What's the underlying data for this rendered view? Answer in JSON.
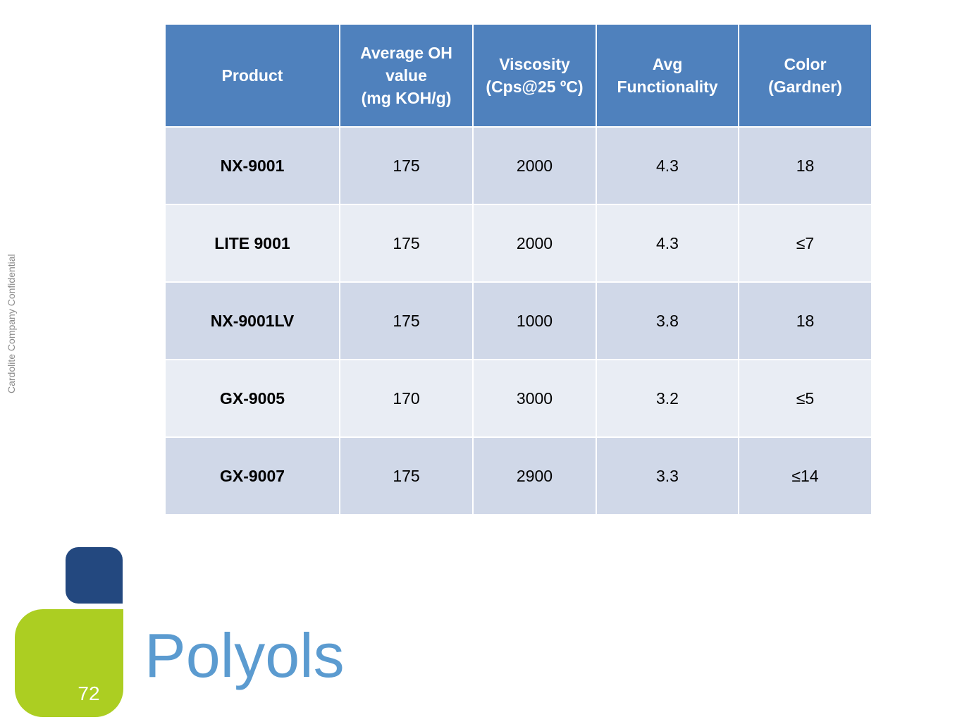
{
  "side_label": "Cardolite Company Confidential",
  "table": {
    "headers": [
      {
        "lines": [
          "Product"
        ]
      },
      {
        "lines": [
          "Average OH",
          "value",
          "(mg KOH/g)"
        ]
      },
      {
        "lines": [
          "Viscosity",
          "(Cps@25 ºC)"
        ]
      },
      {
        "lines": [
          "Avg",
          "Functionality"
        ]
      },
      {
        "lines": [
          "Color",
          "(Gardner)"
        ]
      }
    ],
    "rows": [
      {
        "product": "NX-9001",
        "oh_value": "175",
        "viscosity": "2000",
        "functionality": "4.3",
        "color": "18"
      },
      {
        "product": "LITE 9001",
        "oh_value": "175",
        "viscosity": "2000",
        "functionality": "4.3",
        "color": "≤7"
      },
      {
        "product": "NX-9001LV",
        "oh_value": "175",
        "viscosity": "1000",
        "functionality": "3.8",
        "color": "18"
      },
      {
        "product": "GX-9005",
        "oh_value": "170",
        "viscosity": "3000",
        "functionality": "3.2",
        "color": "≤5"
      },
      {
        "product": "GX-9007",
        "oh_value": "175",
        "viscosity": "2900",
        "functionality": "3.3",
        "color": "≤14"
      }
    ]
  },
  "slide": {
    "title": "Polyols",
    "page_number": "72"
  },
  "colors": {
    "header_bg": "#4f81bd",
    "row_dark": "#d0d8e8",
    "row_light": "#e9edf4",
    "title": "#5b9bd0",
    "deco_blue": "#23487f",
    "deco_green": "#acce22"
  }
}
